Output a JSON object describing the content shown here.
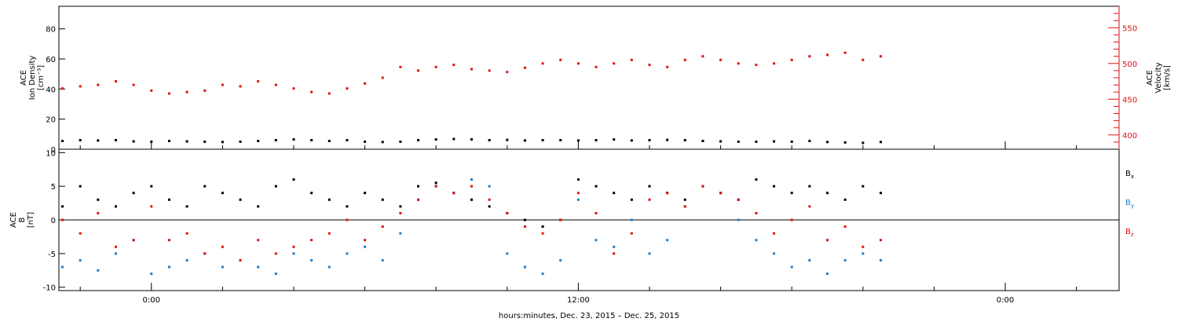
{
  "figure": {
    "xlabel": "hours:minutes, Dec. 23, 2015 – Dec. 25, 2015",
    "x_ticks": [
      "0:00",
      "12:00",
      "0:00"
    ]
  },
  "colors": {
    "black": "#000000",
    "red": "#e01010",
    "blue": "#1a7fd0"
  },
  "chart_data": [
    {
      "type": "scatter",
      "title": "",
      "ylabel_left": [
        "ACE",
        "Ion Density",
        "[cm⁻³]"
      ],
      "ylabel_right": [
        "ACE",
        "Velocity",
        "[km/s]"
      ],
      "ylim_left": [
        0,
        95
      ],
      "ylim_right": [
        380,
        580
      ],
      "yticks_left": [
        "0",
        "20",
        "40",
        "60",
        "80"
      ],
      "yticks_right": [
        "400",
        "450",
        "500",
        "550"
      ],
      "x_unit": "hours since 0:00 Dec. 24, 2015",
      "xlim": [
        -2.6,
        27.2
      ],
      "series": [
        {
          "name": "Ion Density",
          "color": "#000000",
          "axis": "left",
          "points": [
            [
              -2.5,
              5.5
            ],
            [
              -2,
              6
            ],
            [
              -1.5,
              5.8
            ],
            [
              -1,
              6
            ],
            [
              -0.5,
              5.2
            ],
            [
              0,
              5
            ],
            [
              0.5,
              5.5
            ],
            [
              1,
              5.2
            ],
            [
              1.5,
              5
            ],
            [
              2,
              4.8
            ],
            [
              2.5,
              5
            ],
            [
              3,
              5.5
            ],
            [
              3.5,
              6
            ],
            [
              4,
              6.5
            ],
            [
              4.5,
              6
            ],
            [
              5,
              5.5
            ],
            [
              5.5,
              6
            ],
            [
              6,
              5
            ],
            [
              6.5,
              4.8
            ],
            [
              7,
              5
            ],
            [
              7.5,
              6
            ],
            [
              8,
              6.5
            ],
            [
              8.5,
              6.8
            ],
            [
              9,
              6.5
            ],
            [
              9.5,
              6
            ],
            [
              10,
              6.2
            ],
            [
              10.5,
              5.8
            ],
            [
              11,
              6
            ],
            [
              11.5,
              6
            ],
            [
              12,
              5.8
            ],
            [
              12.5,
              6
            ],
            [
              13,
              6.5
            ],
            [
              13.5,
              5.8
            ],
            [
              14,
              6
            ],
            [
              14.5,
              6.2
            ],
            [
              15,
              6
            ],
            [
              15.5,
              5.5
            ],
            [
              16,
              5.2
            ],
            [
              16.5,
              5
            ],
            [
              17,
              5
            ],
            [
              17.5,
              5.2
            ],
            [
              18,
              5
            ],
            [
              18.5,
              5.5
            ],
            [
              19,
              4.8
            ],
            [
              19.5,
              4.5
            ],
            [
              20,
              4.2
            ],
            [
              20.5,
              4.8
            ]
          ]
        },
        {
          "name": "Velocity",
          "color": "#e01010",
          "axis": "right",
          "points": [
            [
              -2.5,
              465
            ],
            [
              -2,
              468
            ],
            [
              -1.5,
              470
            ],
            [
              -1,
              475
            ],
            [
              -0.5,
              470
            ],
            [
              0,
              462
            ],
            [
              0.5,
              458
            ],
            [
              1,
              460
            ],
            [
              1.5,
              462
            ],
            [
              2,
              470
            ],
            [
              2.5,
              468
            ],
            [
              3,
              475
            ],
            [
              3.5,
              470
            ],
            [
              4,
              465
            ],
            [
              4.5,
              460
            ],
            [
              5,
              458
            ],
            [
              5.5,
              465
            ],
            [
              6,
              472
            ],
            [
              6.5,
              480
            ],
            [
              7,
              495
            ],
            [
              7.5,
              490
            ],
            [
              8,
              495
            ],
            [
              8.5,
              498
            ],
            [
              9,
              492
            ],
            [
              9.5,
              490
            ],
            [
              10,
              488
            ],
            [
              10.5,
              494
            ],
            [
              11,
              500
            ],
            [
              11.5,
              505
            ],
            [
              12,
              500
            ],
            [
              12.5,
              495
            ],
            [
              13,
              500
            ],
            [
              13.5,
              505
            ],
            [
              14,
              498
            ],
            [
              14.5,
              495
            ],
            [
              15,
              505
            ],
            [
              15.5,
              510
            ],
            [
              16,
              505
            ],
            [
              16.5,
              500
            ],
            [
              17,
              498
            ],
            [
              17.5,
              500
            ],
            [
              18,
              505
            ],
            [
              18.5,
              510
            ],
            [
              19,
              512
            ],
            [
              19.5,
              515
            ],
            [
              20,
              505
            ],
            [
              20.5,
              510
            ]
          ]
        }
      ]
    },
    {
      "type": "scatter",
      "title": "",
      "ylabel_left": [
        "ACE",
        "B",
        "[nT]"
      ],
      "ylim": [
        -10.5,
        10.5
      ],
      "yticks": [
        "-10",
        "-5",
        "0",
        "5",
        "10"
      ],
      "x_unit": "hours since 0:00 Dec. 24, 2015",
      "xlim": [
        -2.6,
        27.2
      ],
      "legend": [
        {
          "name": "Bx",
          "base": "B",
          "sub": "x",
          "color": "#000000"
        },
        {
          "name": "By",
          "base": "B",
          "sub": "y",
          "color": "#1a7fd0"
        },
        {
          "name": "Bz",
          "base": "B",
          "sub": "z",
          "color": "#e01010"
        }
      ],
      "series": [
        {
          "name": "Bx",
          "color": "#000000",
          "points": [
            [
              -2.5,
              2
            ],
            [
              -2,
              5
            ],
            [
              -1.5,
              3
            ],
            [
              -1,
              2
            ],
            [
              -0.5,
              4
            ],
            [
              0,
              5
            ],
            [
              0.5,
              3
            ],
            [
              1,
              2
            ],
            [
              1.5,
              5
            ],
            [
              2,
              4
            ],
            [
              2.5,
              3
            ],
            [
              3,
              2
            ],
            [
              3.5,
              5
            ],
            [
              4,
              6
            ],
            [
              4.5,
              4
            ],
            [
              5,
              3
            ],
            [
              5.5,
              2
            ],
            [
              6,
              4
            ],
            [
              6.5,
              3
            ],
            [
              7,
              2
            ],
            [
              7.5,
              5
            ],
            [
              8,
              5.5
            ],
            [
              8.5,
              4
            ],
            [
              9,
              3
            ],
            [
              9.5,
              2
            ],
            [
              10,
              1
            ],
            [
              10.5,
              0
            ],
            [
              11,
              -1
            ],
            [
              11.5,
              0
            ],
            [
              12,
              6
            ],
            [
              12.5,
              5
            ],
            [
              13,
              4
            ],
            [
              13.5,
              3
            ],
            [
              14,
              5
            ],
            [
              14.5,
              4
            ],
            [
              15,
              3
            ],
            [
              15.5,
              5
            ],
            [
              16,
              4
            ],
            [
              16.5,
              3
            ],
            [
              17,
              6
            ],
            [
              17.5,
              5
            ],
            [
              18,
              4
            ],
            [
              18.5,
              5
            ],
            [
              19,
              4
            ],
            [
              19.5,
              3
            ],
            [
              20,
              5
            ],
            [
              20.5,
              4
            ]
          ]
        },
        {
          "name": "By",
          "color": "#1a7fd0",
          "points": [
            [
              -2.5,
              -7
            ],
            [
              -2,
              -6
            ],
            [
              -1.5,
              -7.5
            ],
            [
              -1,
              -5
            ],
            [
              -0.5,
              -3
            ],
            [
              0,
              -8
            ],
            [
              0.5,
              -7
            ],
            [
              1,
              -6
            ],
            [
              1.5,
              -5
            ],
            [
              2,
              -7
            ],
            [
              2.5,
              -6
            ],
            [
              3,
              -7
            ],
            [
              3.5,
              -8
            ],
            [
              4,
              -5
            ],
            [
              4.5,
              -6
            ],
            [
              5,
              -7
            ],
            [
              5.5,
              -5
            ],
            [
              6,
              -4
            ],
            [
              6.5,
              -6
            ],
            [
              7,
              -2
            ],
            [
              7.5,
              3
            ],
            [
              8,
              5
            ],
            [
              8.5,
              4
            ],
            [
              9,
              6
            ],
            [
              9.5,
              5
            ],
            [
              10,
              -5
            ],
            [
              10.5,
              -7
            ],
            [
              11,
              -8
            ],
            [
              11.5,
              -6
            ],
            [
              12,
              3
            ],
            [
              12.5,
              -3
            ],
            [
              13,
              -4
            ],
            [
              13.5,
              0
            ],
            [
              14,
              -5
            ],
            [
              14.5,
              -3
            ],
            [
              15,
              2
            ],
            [
              15.5,
              5
            ],
            [
              16,
              4
            ],
            [
              16.5,
              0
            ],
            [
              17,
              -3
            ],
            [
              17.5,
              -5
            ],
            [
              18,
              -7
            ],
            [
              18.5,
              -6
            ],
            [
              19,
              -8
            ],
            [
              19.5,
              -6
            ],
            [
              20,
              -5
            ],
            [
              20.5,
              -6
            ]
          ]
        },
        {
          "name": "Bz",
          "color": "#e01010",
          "points": [
            [
              -2.5,
              0
            ],
            [
              -2,
              -2
            ],
            [
              -1.5,
              1
            ],
            [
              -1,
              -4
            ],
            [
              -0.5,
              -3
            ],
            [
              0,
              2
            ],
            [
              0.5,
              -3
            ],
            [
              1,
              -2
            ],
            [
              1.5,
              -5
            ],
            [
              2,
              -4
            ],
            [
              2.5,
              -6
            ],
            [
              3,
              -3
            ],
            [
              3.5,
              -5
            ],
            [
              4,
              -4
            ],
            [
              4.5,
              -3
            ],
            [
              5,
              -2
            ],
            [
              5.5,
              0
            ],
            [
              6,
              -3
            ],
            [
              6.5,
              -1
            ],
            [
              7,
              1
            ],
            [
              7.5,
              3
            ],
            [
              8,
              5
            ],
            [
              8.5,
              4
            ],
            [
              9,
              5
            ],
            [
              9.5,
              3
            ],
            [
              10,
              1
            ],
            [
              10.5,
              -1
            ],
            [
              11,
              -2
            ],
            [
              11.5,
              0
            ],
            [
              12,
              4
            ],
            [
              12.5,
              1
            ],
            [
              13,
              -5
            ],
            [
              13.5,
              -2
            ],
            [
              14,
              3
            ],
            [
              14.5,
              4
            ],
            [
              15,
              2
            ],
            [
              15.5,
              5
            ],
            [
              16,
              4
            ],
            [
              16.5,
              3
            ],
            [
              17,
              1
            ],
            [
              17.5,
              -2
            ],
            [
              18,
              0
            ],
            [
              18.5,
              2
            ],
            [
              19,
              -3
            ],
            [
              19.5,
              -1
            ],
            [
              20,
              -4
            ],
            [
              20.5,
              -3
            ]
          ]
        }
      ]
    }
  ]
}
